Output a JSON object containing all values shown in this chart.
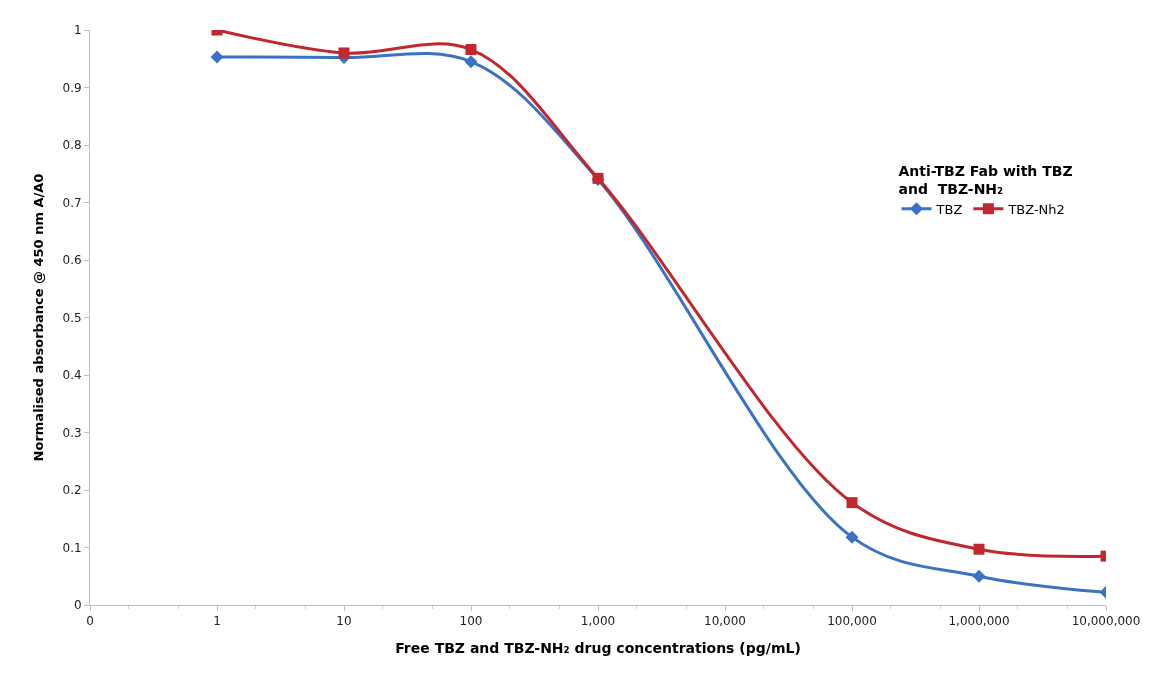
{
  "chart_data": {
    "type": "line",
    "xlabel": "Free TBZ and TBZ-NH₂ drug concentrations (pg/mL)",
    "ylabel": "Normalised absorbance @ 450 nm A/A0",
    "legend_title": "Anti-TBZ Fab with TBZ\nand  TBZ-NH₂",
    "log": "x",
    "x": [
      1,
      10,
      100,
      1000,
      100000,
      1000000,
      10000000
    ],
    "series": [
      {
        "name": "TBZ",
        "color": "#3a72c4",
        "marker": "diamond",
        "values": [
          0.953,
          0.952,
          0.945,
          0.74,
          0.118,
          0.05,
          0.022
        ]
      },
      {
        "name": "TBZ-Nh2",
        "color": "#c0282e",
        "marker": "square",
        "values": [
          1.0,
          0.96,
          0.966,
          0.742,
          0.178,
          0.097,
          0.085
        ]
      }
    ],
    "xlim": [
      0.1,
      10000000
    ],
    "xticks": [
      {
        "value": 0.1,
        "label": "0"
      },
      1,
      10,
      {
        "value": 100,
        "label": "100"
      },
      {
        "value": 1000,
        "label": "1,000"
      },
      {
        "value": 10000,
        "label": "10,000"
      },
      {
        "value": 100000,
        "label": "100,000"
      },
      {
        "value": 1000000,
        "label": "1,000,000"
      },
      {
        "value": 10000000,
        "label": "10,000,000"
      }
    ],
    "ylim": [
      0,
      1
    ],
    "yticks": [
      0,
      0.1,
      0.2,
      0.3,
      0.4,
      0.5,
      0.6,
      0.7,
      0.8,
      0.9,
      1
    ],
    "legend": "right",
    "line_style": "solid"
  }
}
